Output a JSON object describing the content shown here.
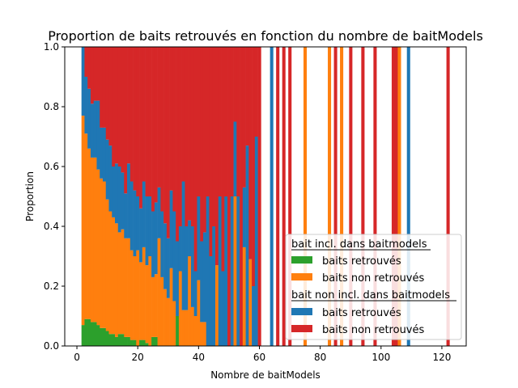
{
  "chart_data": {
    "type": "bar",
    "stacked": true,
    "title": "Proportion de baits retrouvés en fonction du nombre de baitModels",
    "xlabel": "Nombre de baitModels",
    "ylabel": "Proportion",
    "xlim": [
      -4,
      128
    ],
    "ylim": [
      0,
      1
    ],
    "xticks": [
      "0",
      "20",
      "40",
      "60",
      "80",
      "100",
      "120"
    ],
    "yticks": [
      "0.0",
      "0.2",
      "0.4",
      "0.6",
      "0.8",
      "1.0"
    ],
    "grid": false,
    "legend": {
      "location": "lower-right",
      "groups": [
        {
          "title": "bait incl. dans baitmodels",
          "entries": [
            {
              "label": "baits retrouvés",
              "color": "#2ca02c"
            },
            {
              "label": "baits non retrouvés",
              "color": "#ff7f0e"
            }
          ]
        },
        {
          "title": "bait non incl. dans baitmodels",
          "entries": [
            {
              "label": "baits retrouvés",
              "color": "#1f77b4"
            },
            {
              "label": "baits non retrouvés",
              "color": "#d62728"
            }
          ]
        }
      ]
    },
    "series_names": [
      "incl. retrouvés",
      "incl. non retrouvés",
      "non incl. retrouvés",
      "non incl. non retrouvés"
    ],
    "colors": [
      "#2ca02c",
      "#ff7f0e",
      "#1f77b4",
      "#d62728"
    ],
    "x": [
      2,
      3,
      4,
      5,
      6,
      7,
      8,
      9,
      10,
      11,
      12,
      13,
      14,
      15,
      16,
      17,
      18,
      19,
      20,
      21,
      22,
      23,
      24,
      25,
      26,
      27,
      28,
      29,
      30,
      31,
      32,
      33,
      34,
      35,
      36,
      37,
      38,
      39,
      40,
      41,
      42,
      43,
      44,
      45,
      46,
      47,
      48,
      49,
      50,
      51,
      52,
      53,
      54,
      55,
      56,
      57,
      58,
      59,
      60,
      64,
      66,
      68,
      70,
      75,
      83,
      85,
      87,
      90,
      94,
      98,
      104,
      105,
      106,
      109,
      122
    ],
    "values": [
      [
        0.07,
        0.09,
        0.09,
        0.08,
        0.08,
        0.07,
        0.06,
        0.06,
        0.05,
        0.04,
        0.04,
        0.03,
        0.04,
        0.04,
        0.03,
        0.03,
        0.02,
        0.02,
        0,
        0.02,
        0.02,
        0.01,
        0,
        0.03,
        0.03,
        0,
        0,
        0,
        0,
        0,
        0,
        0.1,
        0,
        0,
        0,
        0,
        0,
        0,
        0,
        0,
        0,
        0,
        0,
        0,
        0,
        0,
        0,
        0,
        0,
        0,
        0,
        0,
        0,
        0,
        0,
        0,
        0,
        0,
        0,
        0,
        0,
        0,
        0,
        0,
        0,
        0,
        0,
        0,
        0,
        0,
        0,
        0,
        0,
        0,
        0
      ],
      [
        0.7,
        0.62,
        0.57,
        0.55,
        0.55,
        0.52,
        0.5,
        0.49,
        0.44,
        0.41,
        0.39,
        0.38,
        0.34,
        0.35,
        0.33,
        0.33,
        0.3,
        0.28,
        0.32,
        0.26,
        0.31,
        0.26,
        0.3,
        0.2,
        0.21,
        0.36,
        0.23,
        0.19,
        0.16,
        0.26,
        0.15,
        0,
        0.25,
        0.12,
        0.12,
        0.3,
        0.13,
        0.1,
        0.22,
        0.08,
        0.08,
        0,
        0,
        0,
        0.27,
        0,
        0,
        0,
        0,
        0,
        0.5,
        0,
        0,
        0.33,
        0,
        0.29,
        0,
        0,
        0,
        0,
        0,
        0,
        0,
        1.0,
        1.0,
        0,
        1.0,
        0,
        0,
        0,
        0,
        0,
        1.0,
        0,
        0
      ],
      [
        0.23,
        0.19,
        0.2,
        0.18,
        0.19,
        0.23,
        0.17,
        0.18,
        0.2,
        0.22,
        0.17,
        0.2,
        0.22,
        0.19,
        0.15,
        0.25,
        0.23,
        0.22,
        0.18,
        0.18,
        0.22,
        0.23,
        0.2,
        0.22,
        0.24,
        0.17,
        0.22,
        0.22,
        0.2,
        0.26,
        0.3,
        0.25,
        0.15,
        0.43,
        0.28,
        0.12,
        0.27,
        0.15,
        0.28,
        0.27,
        0.3,
        0.5,
        0.3,
        0.4,
        0,
        0.5,
        0.25,
        0.5,
        0,
        0.5,
        0.25,
        0.5,
        0,
        0.2,
        0.67,
        0,
        0.2,
        0.7,
        0,
        1.0,
        0,
        0,
        0,
        0,
        0,
        0,
        0,
        0,
        0,
        0,
        0,
        0,
        0,
        1.0,
        0
      ],
      [
        0,
        0.1,
        0.14,
        0.19,
        0.18,
        0.18,
        0.27,
        0.27,
        0.31,
        0.33,
        0.4,
        0.39,
        0.4,
        0.42,
        0.49,
        0.39,
        0.45,
        0.48,
        0.5,
        0.54,
        0.45,
        0.5,
        0.5,
        0.55,
        0.52,
        0.47,
        0.55,
        0.59,
        0.64,
        0.48,
        0.55,
        0.65,
        0.6,
        0.45,
        0.6,
        0.58,
        0.6,
        0.75,
        0.5,
        0.65,
        0.62,
        0.5,
        0.7,
        0.6,
        0.73,
        0.5,
        0.75,
        0.5,
        1.0,
        0.5,
        0.25,
        0.5,
        1.0,
        0.47,
        0.33,
        0.71,
        0.8,
        0.3,
        1.0,
        0,
        1.0,
        1.0,
        1.0,
        0,
        0,
        1.0,
        0,
        1.0,
        1.0,
        1.0,
        1.0,
        1.0,
        0,
        0,
        1.0
      ]
    ]
  }
}
